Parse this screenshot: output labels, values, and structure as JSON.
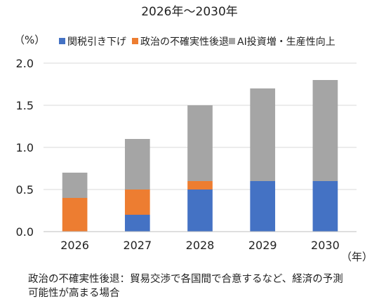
{
  "chart_data": {
    "type": "bar",
    "stacked": true,
    "title": "2026年～2030年",
    "y_unit_label": "（%）",
    "x_unit_label": "（年）",
    "categories": [
      "2026",
      "2027",
      "2028",
      "2029",
      "2030"
    ],
    "series": [
      {
        "name": "関税引き下げ",
        "color": "#4472C4",
        "values": [
          0,
          0.2,
          0.5,
          0.6,
          0.6
        ]
      },
      {
        "name": "政治の不確実性後退",
        "color": "#ED7D31",
        "values": [
          0.4,
          0.3,
          0.1,
          0,
          0
        ]
      },
      {
        "name": "AI投資増・生産性向上",
        "color": "#A5A5A5",
        "values": [
          0.3,
          0.6,
          0.9,
          1.1,
          1.2
        ]
      }
    ],
    "ylim": [
      0,
      2.0
    ],
    "yticks": [
      "0.0",
      "0.5",
      "1.0",
      "1.5",
      "2.0"
    ],
    "ytick_values": [
      0,
      0.5,
      1.0,
      1.5,
      2.0
    ],
    "grid": true,
    "legend_position": "top",
    "note_lines": [
      "政治の不確実性後退：貿易交渉で各国間で合意するなど、経済の予測",
      "可能性が高まる場合"
    ]
  }
}
